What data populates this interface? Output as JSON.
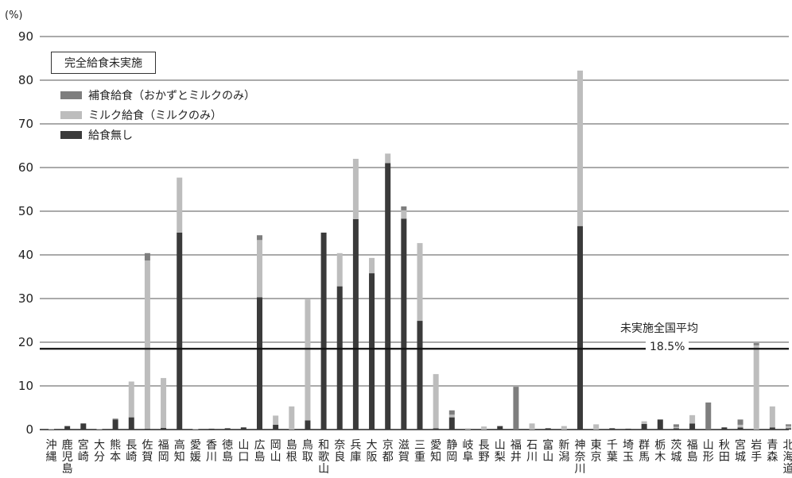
{
  "chart_data": {
    "type": "bar",
    "stacked": true,
    "unit_label": "(%)",
    "ylim": [
      0,
      90
    ],
    "yticks": [
      0,
      10,
      20,
      30,
      40,
      50,
      60,
      70,
      80,
      90
    ],
    "grid": true,
    "legend_title": "完全給食未実施",
    "categories": [
      "沖縄",
      "鹿児島",
      "宮崎",
      "大分",
      "熊本",
      "長崎",
      "佐賀",
      "福岡",
      "高知",
      "愛媛",
      "香川",
      "徳島",
      "山口",
      "広島",
      "岡山",
      "島根",
      "鳥取",
      "和歌山",
      "奈良",
      "兵庫",
      "大阪",
      "京都",
      "滋賀",
      "三重",
      "愛知",
      "静岡",
      "岐阜",
      "長野",
      "山梨",
      "福井",
      "石川",
      "富山",
      "新潟",
      "神奈川",
      "東京",
      "千葉",
      "埼玉",
      "群馬",
      "栃木",
      "茨城",
      "福島",
      "山形",
      "秋田",
      "宮城",
      "岩手",
      "青森",
      "北海道"
    ],
    "series": [
      {
        "name": "給食無し",
        "color": "#3a3a3a",
        "values": [
          0,
          0.8,
          1.4,
          0,
          2.3,
          2.8,
          0.2,
          0.4,
          45.1,
          0,
          0.2,
          0.3,
          0.5,
          30.3,
          1.1,
          0,
          2.1,
          45.1,
          32.8,
          48.2,
          35.8,
          61.0,
          48.3,
          24.9,
          0.3,
          2.8,
          0,
          0,
          0.8,
          0,
          0,
          0.3,
          0,
          46.6,
          0,
          0.3,
          0.2,
          1.3,
          2.3,
          0.3,
          1.4,
          0,
          0.5,
          0.5,
          0,
          0.5,
          0.3
        ]
      },
      {
        "name": "ミルク給食（ミルクのみ）",
        "color": "#bdbdbd",
        "values": [
          0,
          0,
          0,
          0,
          0,
          8.2,
          38.5,
          11.4,
          12.6,
          0,
          0,
          0,
          0,
          13.1,
          2.1,
          5.3,
          27.7,
          0,
          7.6,
          13.8,
          3.5,
          2.2,
          1.9,
          17.8,
          12.4,
          0.6,
          0.3,
          0.7,
          0,
          0,
          1.4,
          0,
          0.8,
          35.6,
          1.2,
          0,
          0,
          0.6,
          0,
          0.3,
          1.9,
          0,
          0,
          0.6,
          19.3,
          4.8,
          0.5
        ]
      },
      {
        "name": "補食給食（おかずとミルクのみ）",
        "color": "#7e7e7e",
        "values": [
          0,
          0,
          0,
          0,
          0.2,
          0,
          1.7,
          0,
          0,
          0,
          0,
          0,
          0,
          1.1,
          0,
          0,
          0,
          0,
          0,
          0,
          0,
          0,
          0.9,
          0,
          0,
          1.0,
          0,
          0,
          0,
          9.8,
          0,
          0,
          0,
          0,
          0,
          0,
          0,
          0,
          0,
          0.6,
          0,
          6.2,
          0,
          1.2,
          0.5,
          0,
          0.4
        ]
      }
    ],
    "legend": [
      "補食給食（おかずとミルクのみ）",
      "ミルク給食（ミルクのみ）",
      "給食無し"
    ],
    "reference_line": {
      "value": 18.5,
      "label": "未実施全国平均",
      "value_label": "18.5%"
    }
  }
}
